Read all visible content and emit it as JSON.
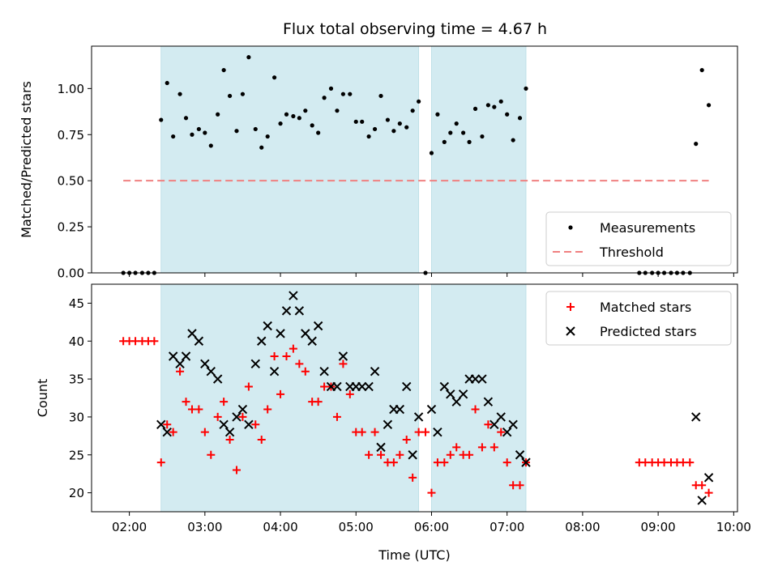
{
  "chart_data": [
    {
      "type": "scatter",
      "title": "Flux total observing time = 4.67 h",
      "ylabel": "Matched/Predicted stars",
      "xlabel": "",
      "xlim": [
        1.5,
        10.05
      ],
      "ylim": [
        0,
        1.23
      ],
      "yticks": [
        0.0,
        0.25,
        0.5,
        0.75,
        1.0
      ],
      "ytick_labels": [
        "0.00",
        "0.25",
        "0.50",
        "0.75",
        "1.00"
      ],
      "shaded_intervals": [
        [
          2.42,
          5.83
        ],
        [
          6.0,
          7.25
        ]
      ],
      "shade_color": "#d3ebf1",
      "legend_position": "lower-right",
      "series": [
        {
          "name": "Measurements",
          "marker": "dot",
          "color": "#000000",
          "points": [
            [
              1.92,
              0
            ],
            [
              2.0,
              0
            ],
            [
              2.08,
              0
            ],
            [
              2.17,
              0
            ],
            [
              2.25,
              0
            ],
            [
              2.33,
              0
            ],
            [
              2.42,
              0.83
            ],
            [
              2.5,
              1.03
            ],
            [
              2.58,
              0.74
            ],
            [
              2.67,
              0.97
            ],
            [
              2.75,
              0.84
            ],
            [
              2.83,
              0.75
            ],
            [
              2.92,
              0.78
            ],
            [
              3.0,
              0.76
            ],
            [
              3.08,
              0.69
            ],
            [
              3.17,
              0.86
            ],
            [
              3.25,
              1.1
            ],
            [
              3.33,
              0.96
            ],
            [
              3.42,
              0.77
            ],
            [
              3.5,
              0.97
            ],
            [
              3.58,
              1.17
            ],
            [
              3.67,
              0.78
            ],
            [
              3.75,
              0.68
            ],
            [
              3.83,
              0.74
            ],
            [
              3.92,
              1.06
            ],
            [
              4.0,
              0.81
            ],
            [
              4.08,
              0.86
            ],
            [
              4.17,
              0.85
            ],
            [
              4.25,
              0.84
            ],
            [
              4.33,
              0.88
            ],
            [
              4.42,
              0.8
            ],
            [
              4.5,
              0.76
            ],
            [
              4.58,
              0.95
            ],
            [
              4.67,
              1.0
            ],
            [
              4.75,
              0.88
            ],
            [
              4.83,
              0.97
            ],
            [
              4.92,
              0.97
            ],
            [
              5.0,
              0.82
            ],
            [
              5.08,
              0.82
            ],
            [
              5.17,
              0.74
            ],
            [
              5.25,
              0.78
            ],
            [
              5.33,
              0.96
            ],
            [
              5.42,
              0.83
            ],
            [
              5.5,
              0.77
            ],
            [
              5.58,
              0.81
            ],
            [
              5.67,
              0.79
            ],
            [
              5.75,
              0.88
            ],
            [
              5.83,
              0.93
            ],
            [
              5.92,
              0
            ],
            [
              6.0,
              0.65
            ],
            [
              6.08,
              0.86
            ],
            [
              6.17,
              0.71
            ],
            [
              6.25,
              0.76
            ],
            [
              6.33,
              0.81
            ],
            [
              6.42,
              0.76
            ],
            [
              6.5,
              0.71
            ],
            [
              6.58,
              0.89
            ],
            [
              6.67,
              0.74
            ],
            [
              6.75,
              0.91
            ],
            [
              6.83,
              0.9
            ],
            [
              6.92,
              0.93
            ],
            [
              7.0,
              0.86
            ],
            [
              7.08,
              0.72
            ],
            [
              7.17,
              0.84
            ],
            [
              7.25,
              1.0
            ],
            [
              8.75,
              0
            ],
            [
              8.83,
              0
            ],
            [
              8.92,
              0
            ],
            [
              9.0,
              0
            ],
            [
              9.08,
              0
            ],
            [
              9.17,
              0
            ],
            [
              9.25,
              0
            ],
            [
              9.33,
              0
            ],
            [
              9.42,
              0
            ],
            [
              9.5,
              0.7
            ],
            [
              9.58,
              1.1
            ],
            [
              9.67,
              0.91
            ]
          ]
        },
        {
          "name": "Threshold",
          "marker": "dashed-line",
          "color": "#f08080",
          "points": [
            [
              1.92,
              0.5
            ],
            [
              9.67,
              0.5
            ]
          ]
        }
      ]
    },
    {
      "type": "scatter",
      "title": "",
      "ylabel": "Count",
      "xlabel": "Time (UTC)",
      "xlim": [
        1.5,
        10.05
      ],
      "ylim": [
        17.5,
        47.5
      ],
      "yticks": [
        20,
        25,
        30,
        35,
        40,
        45
      ],
      "ytick_labels": [
        "20",
        "25",
        "30",
        "35",
        "40",
        "45"
      ],
      "xticks": [
        2,
        3,
        4,
        5,
        6,
        7,
        8,
        9,
        10
      ],
      "xtick_labels": [
        "02:00",
        "03:00",
        "04:00",
        "05:00",
        "06:00",
        "07:00",
        "08:00",
        "09:00",
        "10:00"
      ],
      "shaded_intervals": [
        [
          2.42,
          5.83
        ],
        [
          6.0,
          7.25
        ]
      ],
      "shade_color": "#d3ebf1",
      "legend_position": "upper-right",
      "series": [
        {
          "name": "Matched stars",
          "marker": "plus",
          "color": "#ff0000",
          "points": [
            [
              1.92,
              40
            ],
            [
              2.0,
              40
            ],
            [
              2.08,
              40
            ],
            [
              2.17,
              40
            ],
            [
              2.25,
              40
            ],
            [
              2.33,
              40
            ],
            [
              2.42,
              24
            ],
            [
              2.5,
              29
            ],
            [
              2.58,
              28
            ],
            [
              2.67,
              36
            ],
            [
              2.75,
              32
            ],
            [
              2.83,
              31
            ],
            [
              2.92,
              31
            ],
            [
              3.0,
              28
            ],
            [
              3.08,
              25
            ],
            [
              3.17,
              30
            ],
            [
              3.25,
              32
            ],
            [
              3.33,
              27
            ],
            [
              3.42,
              23
            ],
            [
              3.5,
              30
            ],
            [
              3.58,
              34
            ],
            [
              3.67,
              29
            ],
            [
              3.75,
              27
            ],
            [
              3.83,
              31
            ],
            [
              3.92,
              38
            ],
            [
              4.0,
              33
            ],
            [
              4.08,
              38
            ],
            [
              4.17,
              39
            ],
            [
              4.25,
              37
            ],
            [
              4.33,
              36
            ],
            [
              4.42,
              32
            ],
            [
              4.5,
              32
            ],
            [
              4.58,
              34
            ],
            [
              4.67,
              34
            ],
            [
              4.75,
              30
            ],
            [
              4.83,
              37
            ],
            [
              4.92,
              33
            ],
            [
              5.0,
              28
            ],
            [
              5.08,
              28
            ],
            [
              5.17,
              25
            ],
            [
              5.25,
              28
            ],
            [
              5.33,
              25
            ],
            [
              5.42,
              24
            ],
            [
              5.5,
              24
            ],
            [
              5.58,
              25
            ],
            [
              5.67,
              27
            ],
            [
              5.75,
              22
            ],
            [
              5.83,
              28
            ],
            [
              5.92,
              28
            ],
            [
              6.0,
              20
            ],
            [
              6.08,
              24
            ],
            [
              6.17,
              24
            ],
            [
              6.25,
              25
            ],
            [
              6.33,
              26
            ],
            [
              6.42,
              25
            ],
            [
              6.5,
              25
            ],
            [
              6.58,
              31
            ],
            [
              6.67,
              26
            ],
            [
              6.75,
              29
            ],
            [
              6.83,
              26
            ],
            [
              6.92,
              28
            ],
            [
              7.0,
              24
            ],
            [
              7.08,
              21
            ],
            [
              7.17,
              21
            ],
            [
              7.25,
              24
            ],
            [
              8.75,
              24
            ],
            [
              8.83,
              24
            ],
            [
              8.92,
              24
            ],
            [
              9.0,
              24
            ],
            [
              9.08,
              24
            ],
            [
              9.17,
              24
            ],
            [
              9.25,
              24
            ],
            [
              9.33,
              24
            ],
            [
              9.42,
              24
            ],
            [
              9.5,
              21
            ],
            [
              9.58,
              21
            ],
            [
              9.67,
              20
            ]
          ]
        },
        {
          "name": "Predicted stars",
          "marker": "x",
          "color": "#000000",
          "points": [
            [
              2.42,
              29
            ],
            [
              2.5,
              28
            ],
            [
              2.58,
              38
            ],
            [
              2.67,
              37
            ],
            [
              2.75,
              38
            ],
            [
              2.83,
              41
            ],
            [
              2.92,
              40
            ],
            [
              3.0,
              37
            ],
            [
              3.08,
              36
            ],
            [
              3.17,
              35
            ],
            [
              3.25,
              29
            ],
            [
              3.33,
              28
            ],
            [
              3.42,
              30
            ],
            [
              3.5,
              31
            ],
            [
              3.58,
              29
            ],
            [
              3.67,
              37
            ],
            [
              3.75,
              40
            ],
            [
              3.83,
              42
            ],
            [
              3.92,
              36
            ],
            [
              4.0,
              41
            ],
            [
              4.08,
              44
            ],
            [
              4.17,
              46
            ],
            [
              4.25,
              44
            ],
            [
              4.33,
              41
            ],
            [
              4.42,
              40
            ],
            [
              4.5,
              42
            ],
            [
              4.58,
              36
            ],
            [
              4.67,
              34
            ],
            [
              4.75,
              34
            ],
            [
              4.83,
              38
            ],
            [
              4.92,
              34
            ],
            [
              5.0,
              34
            ],
            [
              5.08,
              34
            ],
            [
              5.17,
              34
            ],
            [
              5.25,
              36
            ],
            [
              5.33,
              26
            ],
            [
              5.42,
              29
            ],
            [
              5.5,
              31
            ],
            [
              5.58,
              31
            ],
            [
              5.67,
              34
            ],
            [
              5.75,
              25
            ],
            [
              5.83,
              30
            ],
            [
              6.0,
              31
            ],
            [
              6.08,
              28
            ],
            [
              6.17,
              34
            ],
            [
              6.25,
              33
            ],
            [
              6.33,
              32
            ],
            [
              6.42,
              33
            ],
            [
              6.5,
              35
            ],
            [
              6.58,
              35
            ],
            [
              6.67,
              35
            ],
            [
              6.75,
              32
            ],
            [
              6.83,
              29
            ],
            [
              6.92,
              30
            ],
            [
              7.0,
              28
            ],
            [
              7.08,
              29
            ],
            [
              7.17,
              25
            ],
            [
              7.25,
              24
            ],
            [
              9.5,
              30
            ],
            [
              9.58,
              19
            ],
            [
              9.67,
              22
            ]
          ]
        }
      ]
    }
  ]
}
